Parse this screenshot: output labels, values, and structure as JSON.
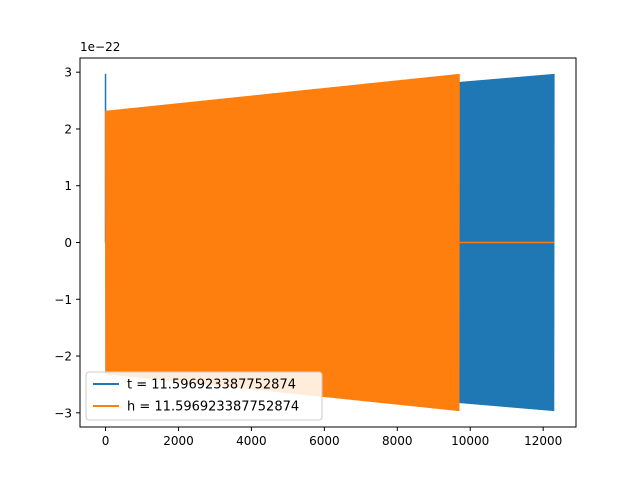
{
  "chart_data": {
    "type": "line",
    "title": "",
    "xlabel": "",
    "ylabel": "",
    "y_offset_label": "1e−22",
    "xlim": [
      -700,
      12900
    ],
    "ylim": [
      -3.25,
      3.25
    ],
    "y_scale": 1e-22,
    "x_ticks": [
      0,
      2000,
      4000,
      6000,
      8000,
      10000,
      12000
    ],
    "x_tick_labels": [
      "0",
      "2000",
      "4000",
      "6000",
      "8000",
      "10000",
      "12000"
    ],
    "y_ticks": [
      -3,
      -2,
      -1,
      0,
      1,
      2,
      3
    ],
    "y_tick_labels": [
      "−3",
      "−2",
      "−1",
      "0",
      "1",
      "2",
      "3"
    ],
    "grid": false,
    "legend_position": "lower-left",
    "series": [
      {
        "name": "t = 11.596923387752874",
        "color": "#1f77b4",
        "x_start": 0,
        "x_end": 12300,
        "envelope_start": 2.3,
        "envelope_end": 2.97,
        "initial_spike": 2.97
      },
      {
        "name": "h = 11.596923387752874",
        "color": "#ff7f0e",
        "x_start": 0,
        "x_end": 9700,
        "envelope_start": 2.32,
        "envelope_end": 2.97,
        "flat_after_end": 0,
        "flat_until": 12300
      }
    ]
  }
}
